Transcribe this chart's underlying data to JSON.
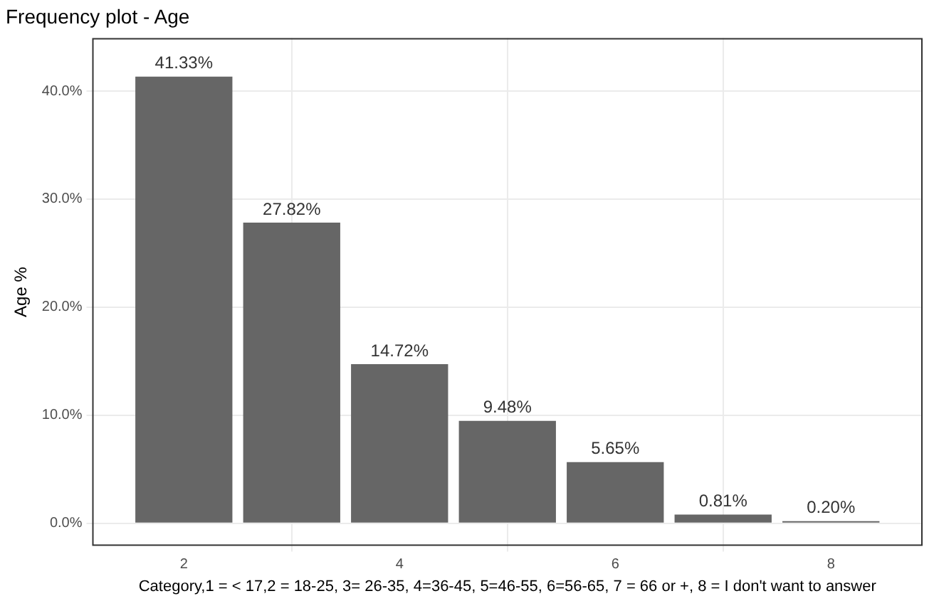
{
  "chart_data": {
    "type": "bar",
    "title": "Frequency plot - Age",
    "xlabel": "Category,1 = < 17,2 = 18-25, 3= 26-35, 4=36-45, 5=46-55, 6=56-65, 7 = 66 or +, 8 = I don't want to answer",
    "ylabel": "Age %",
    "x": [
      2,
      3,
      4,
      5,
      6,
      7,
      8
    ],
    "values": [
      41.33,
      27.82,
      14.72,
      9.48,
      5.65,
      0.81,
      0.2
    ],
    "value_labels": [
      "41.33%",
      "27.82%",
      "14.72%",
      "9.48%",
      "5.65%",
      "0.81%",
      "0.20%"
    ],
    "color": "#666666",
    "xlim": [
      1.15,
      8.85
    ],
    "xticks": [
      2,
      4,
      6,
      8
    ],
    "ylim": [
      -2.1,
      44.9
    ],
    "yticks": [
      {
        "value": 0,
        "label": "0.0%"
      },
      {
        "value": 10,
        "label": "10.0%"
      },
      {
        "value": 20,
        "label": "20.0%"
      },
      {
        "value": 30,
        "label": "30.0%"
      },
      {
        "value": 40,
        "label": "40.0%"
      }
    ],
    "grid": true,
    "legend": false
  }
}
